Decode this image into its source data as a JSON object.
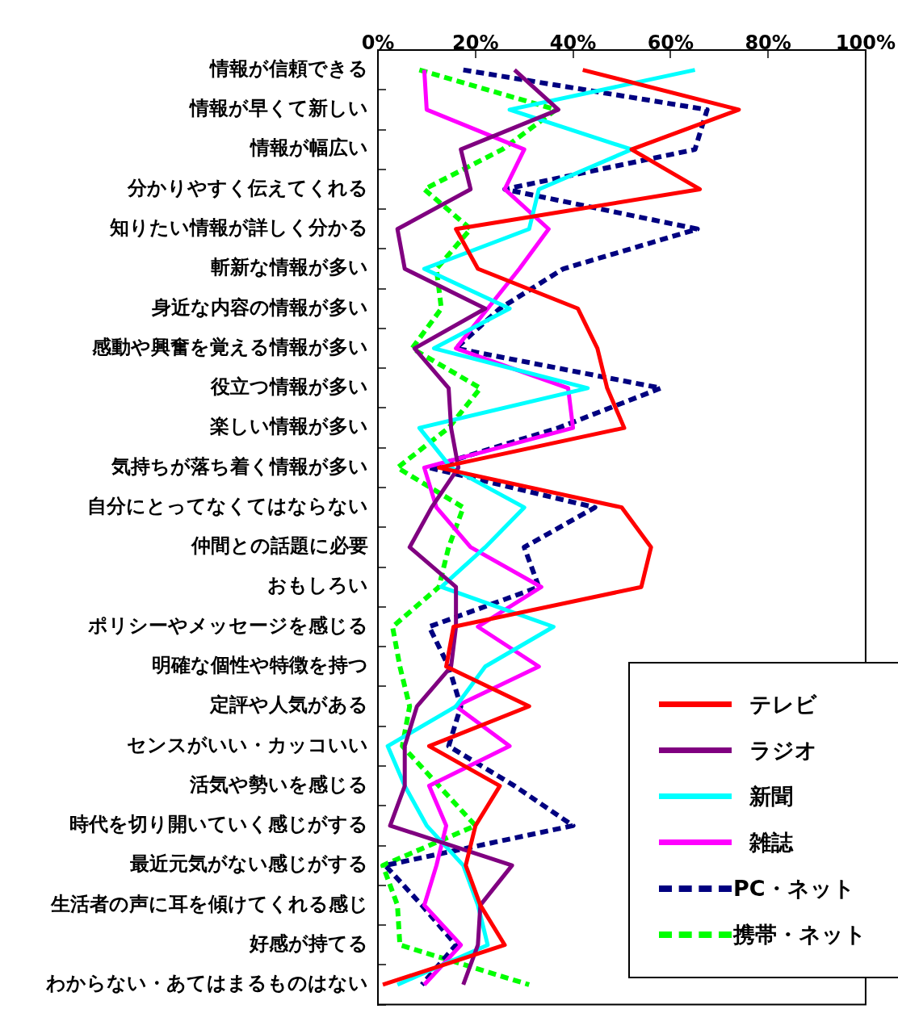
{
  "chart_data": {
    "type": "line",
    "orientation": "horizontal",
    "categories": [
      "情報が信頼できる",
      "情報が早くて新しい",
      "情報が幅広い",
      "分かりやすく伝えてくれる",
      "知りたい情報が詳しく分かる",
      "斬新な情報が多い",
      "身近な内容の情報が多い",
      "感動や興奮を覚える情報が多い",
      "役立つ情報が多い",
      "楽しい情報が多い",
      "気持ちが落ち着く情報が多い",
      "自分にとってなくてはならない",
      "仲間との話題に必要",
      "おもしろい",
      "ポリシーやメッセージを感じる",
      "明確な個性や特徴を持つ",
      "定評や人気がある",
      "センスがいい・カッコいい",
      "活気や勢いを感じる",
      "時代を切り開いていく感じがする",
      "最近元気がない感じがする",
      "生活者の声に耳を傾けてくれる感じ",
      "好感が持てる",
      "わからない・あてはまるものはない"
    ],
    "series": [
      {
        "name": "テレビ",
        "color": "#ff0000",
        "line_style": "solid",
        "values": [
          42,
          74,
          52,
          66,
          16,
          20.5,
          41,
          45,
          47,
          50.5,
          12.5,
          50,
          56,
          54,
          15.5,
          14,
          31,
          10.5,
          25,
          20,
          18,
          21,
          26,
          1
        ]
      },
      {
        "name": "ラジオ",
        "color": "#800080",
        "line_style": "solid",
        "values": [
          28,
          37,
          17,
          19,
          4,
          5.5,
          22,
          7.5,
          14.5,
          15,
          16.5,
          11,
          6.5,
          16,
          16,
          15,
          8,
          5.5,
          5.5,
          2.5,
          27.5,
          21,
          20.5,
          17.5
        ]
      },
      {
        "name": "新聞",
        "color": "#00ffff",
        "line_style": "solid",
        "values": [
          65,
          27,
          52,
          33,
          31,
          9.5,
          27,
          11.5,
          43,
          8.5,
          15,
          30,
          22,
          13,
          36,
          22,
          16,
          2,
          5.5,
          10,
          17.5,
          20.5,
          22.5,
          4
        ]
      },
      {
        "name": "雑誌",
        "color": "#ff00ff",
        "line_style": "solid",
        "values": [
          9.5,
          10,
          30,
          26,
          35,
          29,
          22.5,
          16,
          39,
          40,
          9.5,
          12,
          19,
          33.5,
          20.5,
          33,
          16,
          27,
          10.5,
          14,
          12,
          9.5,
          17,
          9.5
        ]
      },
      {
        "name": "PC・ネット",
        "color": "#000080",
        "line_style": "dashed",
        "values": [
          17.5,
          67.5,
          65,
          26,
          65.5,
          38,
          25,
          16,
          58,
          37,
          10.5,
          44.5,
          30,
          33,
          10.5,
          14.5,
          17,
          14.5,
          28,
          40,
          1.5,
          9,
          16,
          9
        ]
      },
      {
        "name": "携帯・ネット",
        "color": "#00ff00",
        "line_style": "dashed",
        "values": [
          8.5,
          36.5,
          25.5,
          9.5,
          19,
          12,
          13,
          7,
          21,
          14.5,
          4,
          17.5,
          14.5,
          12.5,
          3,
          4.5,
          6.5,
          5,
          12.5,
          20,
          1,
          4,
          4.5,
          31
        ]
      }
    ],
    "xlim": [
      0,
      100
    ],
    "xticks": [
      {
        "value": 0,
        "label": "0%"
      },
      {
        "value": 20,
        "label": "20%"
      },
      {
        "value": 40,
        "label": "40%"
      },
      {
        "value": 60,
        "label": "60%"
      },
      {
        "value": 80,
        "label": "80%"
      },
      {
        "value": 100,
        "label": "100%"
      }
    ],
    "grid": false,
    "legend": "bottom right"
  }
}
